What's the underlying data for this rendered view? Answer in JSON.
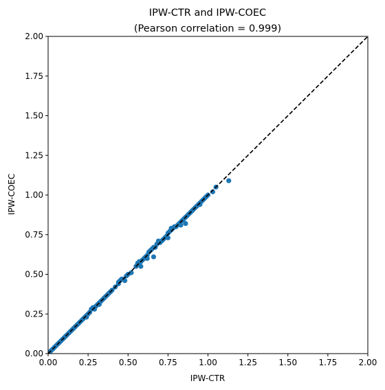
{
  "chart_data": {
    "type": "scatter",
    "title": "IPW-CTR and IPW-COEC",
    "subtitle": "(Pearson correlation = 0.999)",
    "xlabel": "IPW-CTR",
    "ylabel": "IPW-COEC",
    "xlim": [
      0,
      2
    ],
    "ylim": [
      0,
      2
    ],
    "xticks": [
      "0.00",
      "0.25",
      "0.50",
      "0.75",
      "1.00",
      "1.25",
      "1.50",
      "1.75",
      "2.00"
    ],
    "yticks": [
      "0.00",
      "0.25",
      "0.50",
      "0.75",
      "1.00",
      "1.25",
      "1.50",
      "1.75",
      "2.00"
    ],
    "grid": false,
    "reference_line": {
      "from": [
        0,
        0
      ],
      "to": [
        2,
        2
      ],
      "style": "dashed",
      "color": "#000000"
    },
    "series": [
      {
        "color": "#1f77b4",
        "points": [
          [
            0.01,
            0.01
          ],
          [
            0.02,
            0.02
          ],
          [
            0.03,
            0.03
          ],
          [
            0.04,
            0.04
          ],
          [
            0.05,
            0.05
          ],
          [
            0.06,
            0.06
          ],
          [
            0.07,
            0.07
          ],
          [
            0.08,
            0.08
          ],
          [
            0.09,
            0.09
          ],
          [
            0.1,
            0.1
          ],
          [
            0.11,
            0.11
          ],
          [
            0.12,
            0.12
          ],
          [
            0.13,
            0.13
          ],
          [
            0.14,
            0.14
          ],
          [
            0.15,
            0.15
          ],
          [
            0.16,
            0.16
          ],
          [
            0.17,
            0.17
          ],
          [
            0.18,
            0.18
          ],
          [
            0.19,
            0.19
          ],
          [
            0.2,
            0.2
          ],
          [
            0.21,
            0.21
          ],
          [
            0.22,
            0.22
          ],
          [
            0.23,
            0.23
          ],
          [
            0.24,
            0.24
          ],
          [
            0.25,
            0.25
          ],
          [
            0.26,
            0.26
          ],
          [
            0.27,
            0.28
          ],
          [
            0.28,
            0.29
          ],
          [
            0.29,
            0.28
          ],
          [
            0.3,
            0.3
          ],
          [
            0.31,
            0.31
          ],
          [
            0.32,
            0.32
          ],
          [
            0.33,
            0.33
          ],
          [
            0.34,
            0.34
          ],
          [
            0.35,
            0.35
          ],
          [
            0.36,
            0.36
          ],
          [
            0.37,
            0.37
          ],
          [
            0.38,
            0.38
          ],
          [
            0.39,
            0.39
          ],
          [
            0.4,
            0.4
          ],
          [
            0.42,
            0.42
          ],
          [
            0.44,
            0.44
          ],
          [
            0.45,
            0.46
          ],
          [
            0.46,
            0.47
          ],
          [
            0.47,
            0.47
          ],
          [
            0.48,
            0.46
          ],
          [
            0.49,
            0.49
          ],
          [
            0.5,
            0.5
          ],
          [
            0.55,
            0.55
          ],
          [
            0.56,
            0.57
          ],
          [
            0.57,
            0.58
          ],
          [
            0.58,
            0.58
          ],
          [
            0.59,
            0.59
          ],
          [
            0.6,
            0.6
          ],
          [
            0.61,
            0.61
          ],
          [
            0.62,
            0.62
          ],
          [
            0.63,
            0.64
          ],
          [
            0.64,
            0.65
          ],
          [
            0.65,
            0.66
          ],
          [
            0.66,
            0.67
          ],
          [
            0.67,
            0.67
          ],
          [
            0.68,
            0.69
          ],
          [
            0.69,
            0.7
          ],
          [
            0.7,
            0.7
          ],
          [
            0.71,
            0.71
          ],
          [
            0.72,
            0.72
          ],
          [
            0.73,
            0.73
          ],
          [
            0.74,
            0.74
          ],
          [
            0.75,
            0.76
          ],
          [
            0.76,
            0.77
          ],
          [
            0.77,
            0.78
          ],
          [
            0.78,
            0.79
          ],
          [
            0.79,
            0.8
          ],
          [
            0.8,
            0.8
          ],
          [
            0.81,
            0.81
          ],
          [
            0.82,
            0.82
          ],
          [
            0.83,
            0.83
          ],
          [
            0.84,
            0.84
          ],
          [
            0.85,
            0.85
          ],
          [
            0.86,
            0.86
          ],
          [
            0.87,
            0.87
          ],
          [
            0.88,
            0.88
          ],
          [
            0.89,
            0.89
          ],
          [
            0.9,
            0.9
          ],
          [
            0.91,
            0.91
          ],
          [
            0.92,
            0.92
          ],
          [
            0.93,
            0.93
          ],
          [
            0.94,
            0.94
          ],
          [
            0.95,
            0.95
          ],
          [
            0.96,
            0.96
          ],
          [
            0.97,
            0.97
          ],
          [
            0.98,
            0.98
          ],
          [
            0.99,
            0.99
          ],
          [
            1.0,
            1.0
          ],
          [
            1.03,
            1.02
          ],
          [
            1.05,
            1.05
          ],
          [
            1.13,
            1.09
          ],
          [
            0.66,
            0.61
          ],
          [
            0.62,
            0.6
          ],
          [
            0.58,
            0.55
          ],
          [
            0.86,
            0.82
          ],
          [
            0.75,
            0.73
          ],
          [
            0.69,
            0.71
          ],
          [
            0.95,
            0.94
          ],
          [
            0.83,
            0.81
          ],
          [
            0.77,
            0.79
          ],
          [
            0.52,
            0.51
          ],
          [
            0.44,
            0.45
          ],
          [
            0.32,
            0.31
          ],
          [
            0.24,
            0.23
          ]
        ]
      }
    ]
  }
}
